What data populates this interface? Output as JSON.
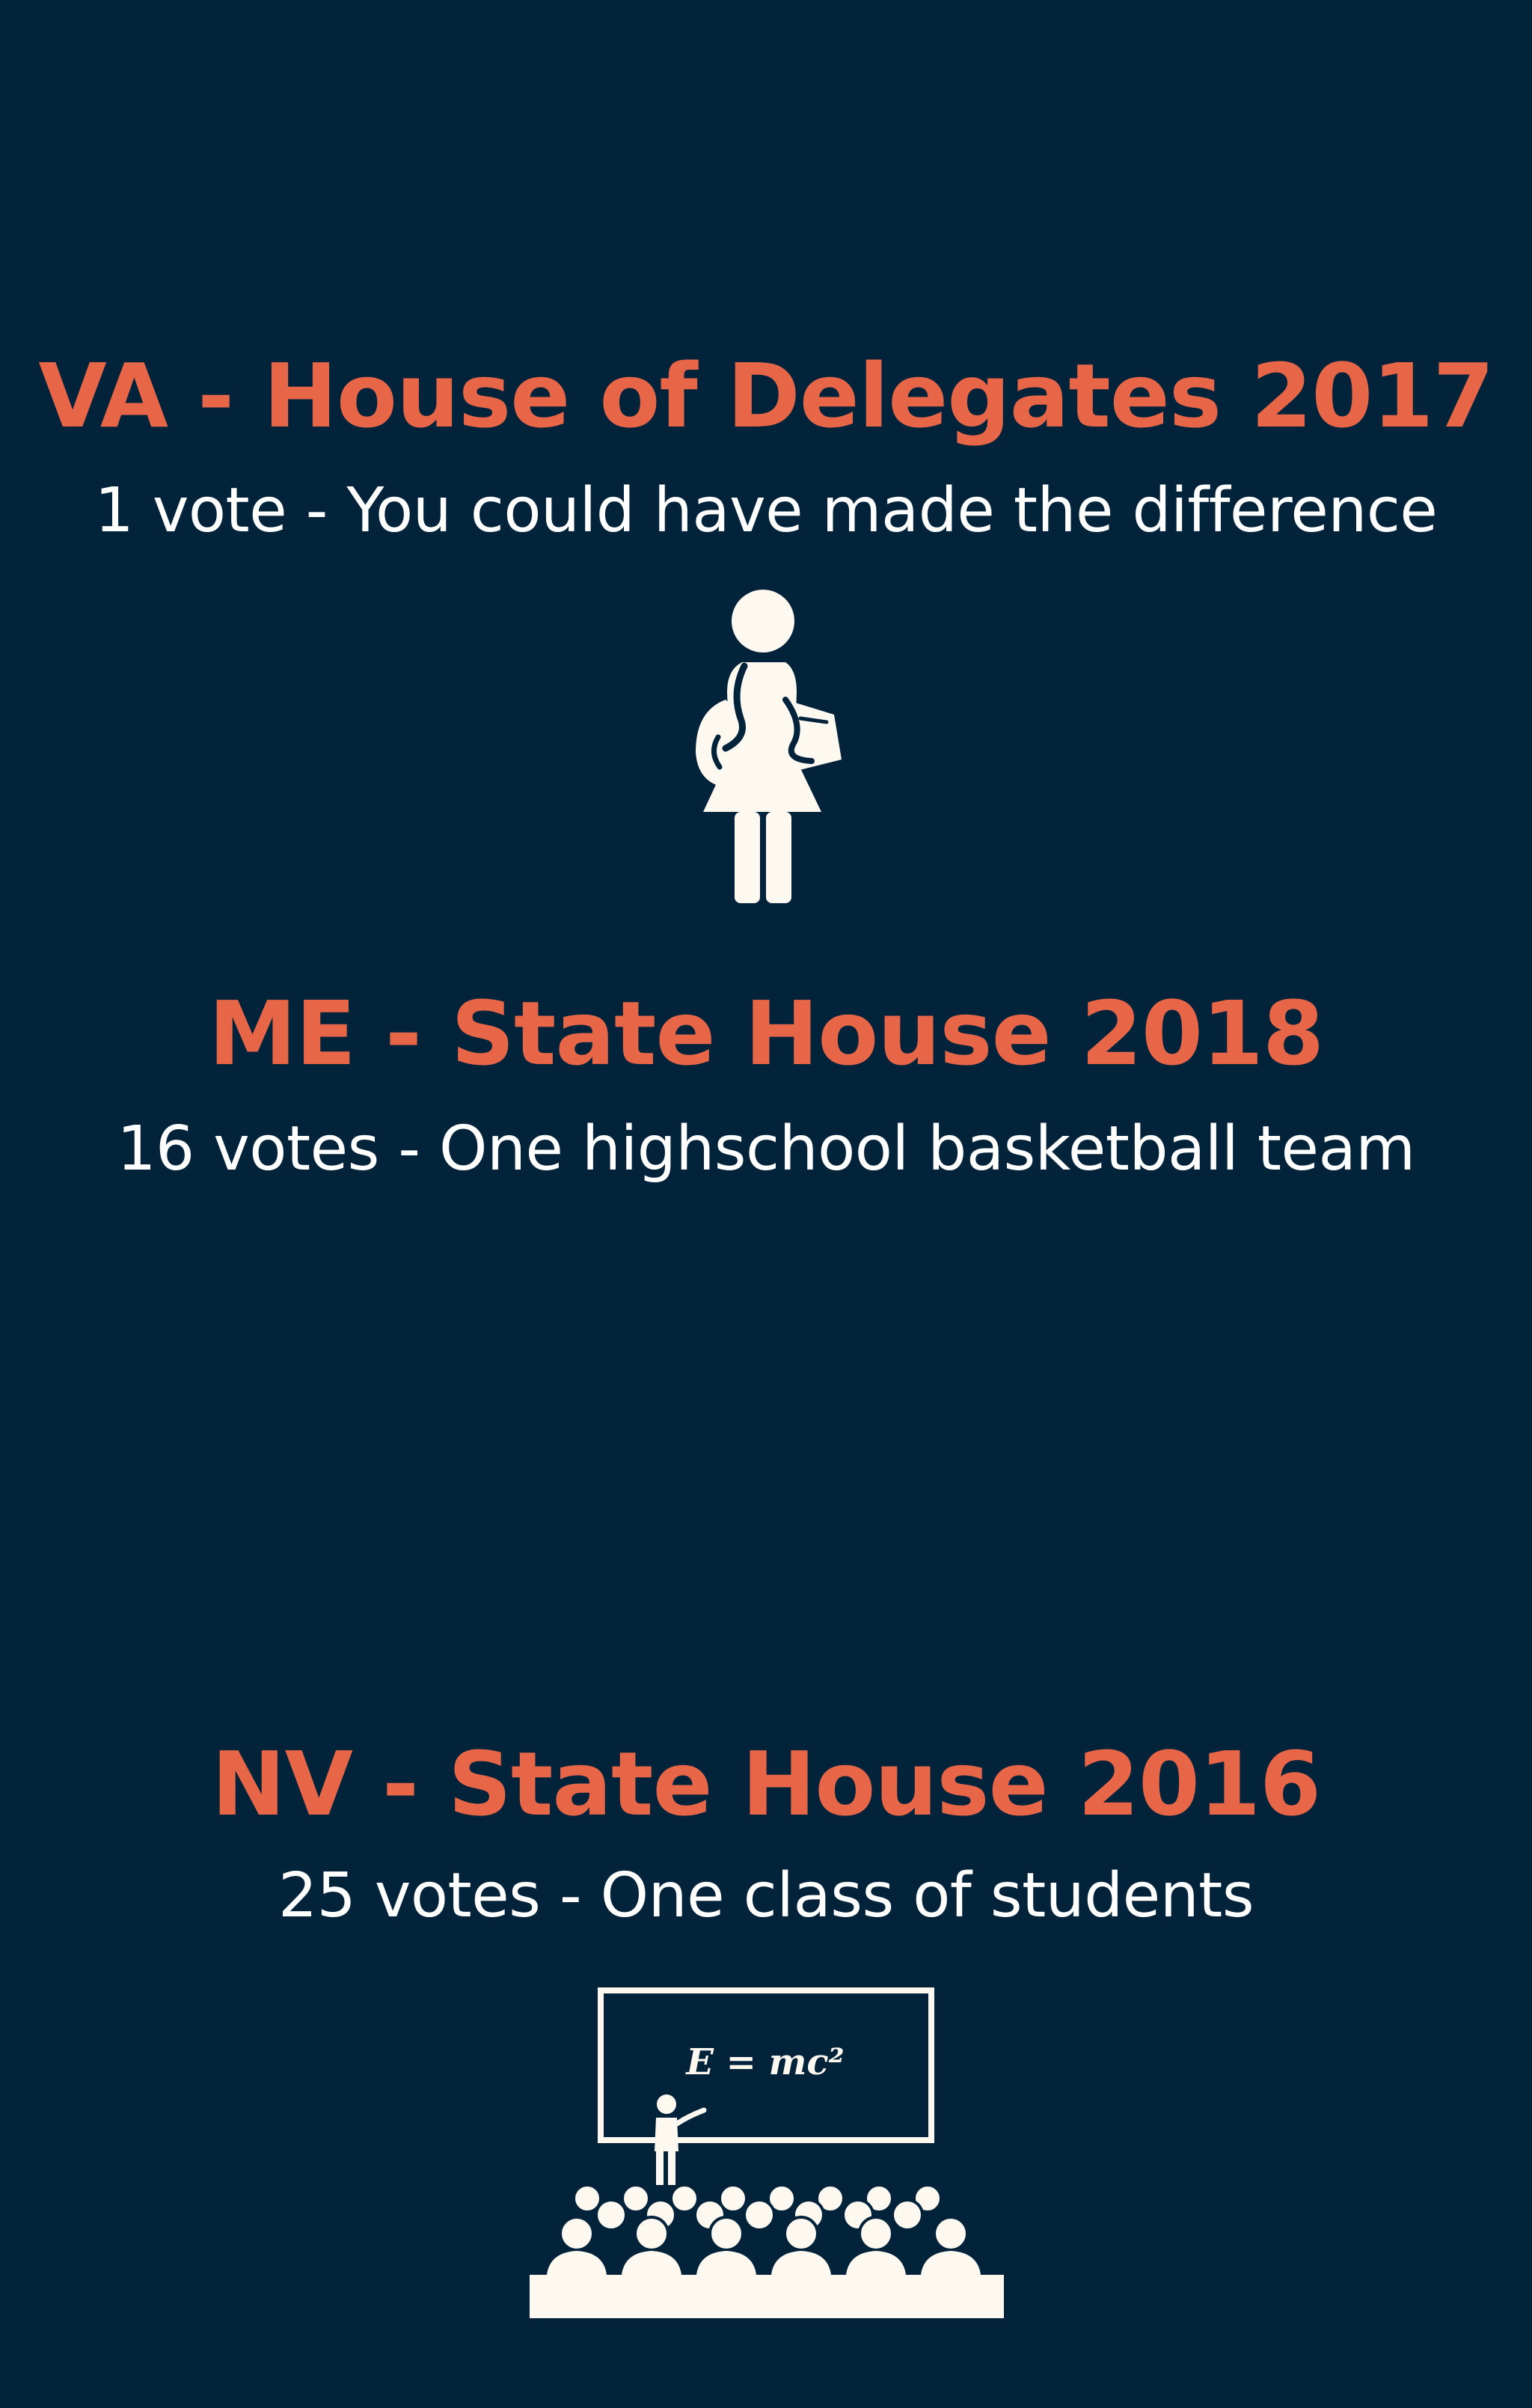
{
  "colors": {
    "background": "#03233b",
    "accent": "#e86648",
    "text": "#ffffff",
    "icon": "#fdf8f0"
  },
  "sections": [
    {
      "heading": "VA - House of Delegates 2017",
      "subtext": "1 vote - You could have made the difference",
      "icon": "student-with-backpack-icon"
    },
    {
      "heading": "ME - State House 2018",
      "subtext": "16 votes - One highschool basketball team",
      "icon": ""
    },
    {
      "heading": "NV - State House 2016",
      "subtext": "25 votes - One class of students",
      "icon": "classroom-icon",
      "blackboard_text": "E = mc²"
    }
  ]
}
